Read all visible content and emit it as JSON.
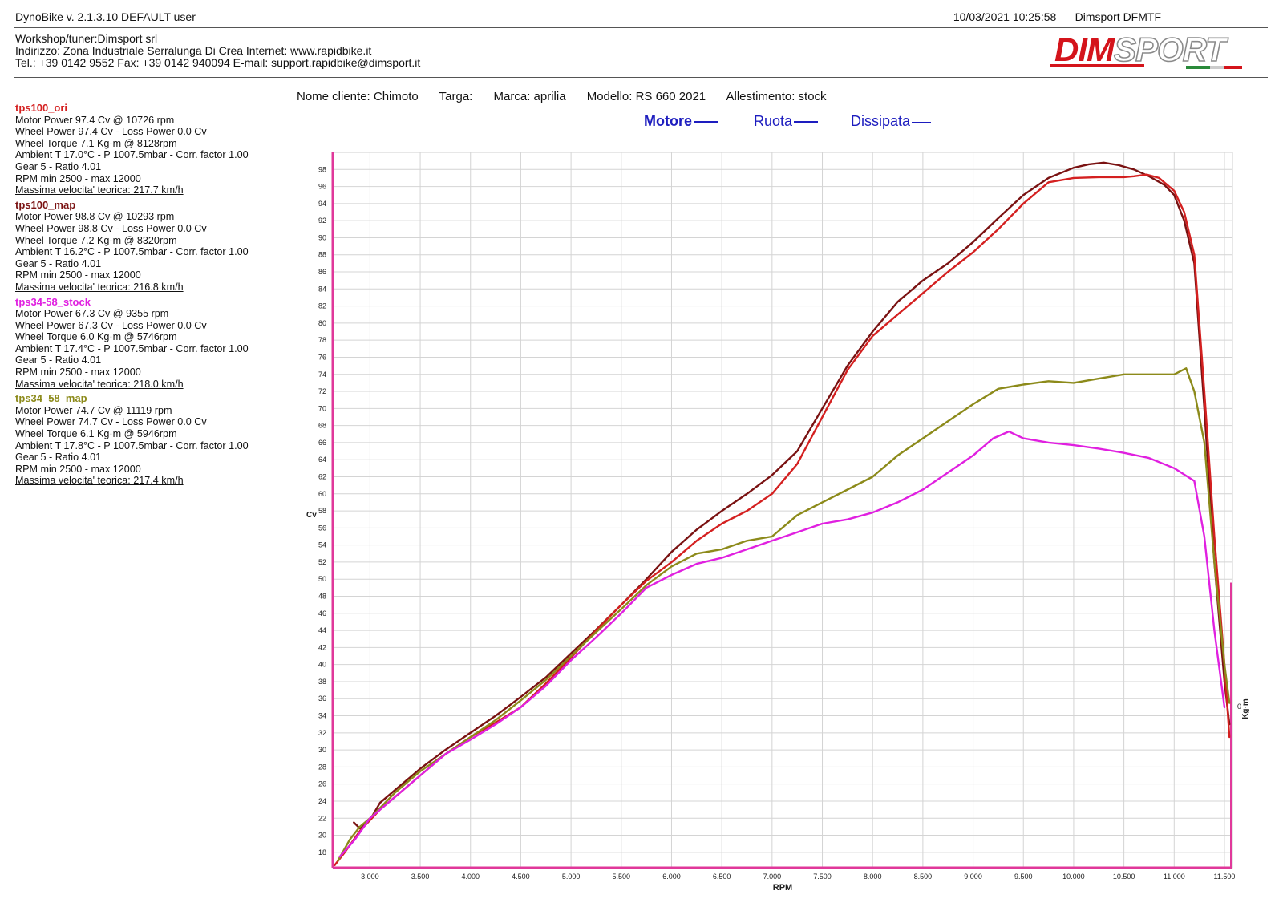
{
  "header": {
    "app": "DynoBike v. 2.1.3.10   DEFAULT user",
    "datetime": "10/03/2021 10:25:58",
    "device": "Dimsport DFMTF"
  },
  "workshop": {
    "line1": "Workshop/tuner:Dimsport srl",
    "line2": "Indirizzo: Zona Industriale Serralunga Di Crea Internet: www.rapidbike.it",
    "line3": "Tel.: +39 0142 9552 Fax: +39 0142 940094 E-mail: support.rapidbike@dimsport.it"
  },
  "logo": {
    "text_a": "DIM",
    "text_b": "SPORT"
  },
  "customer": {
    "nome": "Nome cliente: Chimoto",
    "targa": "Targa:",
    "marca": "Marca: aprilia",
    "modello": "Modello: RS 660 2021",
    "allestimento": "Allestimento: stock"
  },
  "legend": {
    "motore": "Motore",
    "ruota": "Ruota",
    "dissipata": "Dissipata",
    "color": "#1d1dbf"
  },
  "runs": [
    {
      "name": "tps100_ori",
      "color": "#d42020",
      "lines": [
        "Motor Power 97.4 Cv  @ 10726 rpm",
        "Wheel Power 97.4 Cv  - Loss Power 0.0 Cv",
        "Wheel Torque 7.1 Kg·m  @ 8128rpm",
        "Ambient T 17.0°C - P 1007.5mbar - Corr. factor 1.00",
        "Gear 5 - Ratio 4.01",
        "RPM min 2500 - max 12000"
      ],
      "speed": "Massima velocita' teorica: 217.7 km/h"
    },
    {
      "name": "tps100_map",
      "color": "#7a1212",
      "lines": [
        "Motor Power 98.8 Cv  @ 10293 rpm",
        "Wheel Power 98.8 Cv  - Loss Power 0.0 Cv",
        "Wheel Torque 7.2 Kg·m  @ 8320rpm",
        "Ambient T 16.2°C - P 1007.5mbar - Corr. factor 1.00",
        "Gear 5 - Ratio 4.01",
        "RPM min 2500 - max 12000"
      ],
      "speed": "Massima velocita' teorica: 216.8 km/h"
    },
    {
      "name": "tps34-58_stock",
      "color": "#e020e0",
      "lines": [
        "Motor Power 67.3 Cv  @ 9355 rpm",
        "Wheel Power 67.3 Cv  - Loss Power 0.0 Cv",
        "Wheel Torque 6.0 Kg·m  @ 5746rpm",
        "Ambient T 17.4°C - P 1007.5mbar - Corr. factor 1.00",
        "Gear 5 - Ratio 4.01",
        "RPM min 2500 - max 12000"
      ],
      "speed": "Massima velocita' teorica: 218.0 km/h"
    },
    {
      "name": "tps34_58_map",
      "color": "#8c8a1a",
      "lines": [
        "Motor Power 74.7 Cv  @ 11119 rpm",
        "Wheel Power 74.7 Cv  - Loss Power 0.0 Cv",
        "Wheel Torque 6.1 Kg·m  @ 5946rpm",
        "Ambient T 17.8°C - P 1007.5mbar - Corr. factor 1.00",
        "Gear 5 - Ratio 4.01",
        "RPM min 2500 - max 12000"
      ],
      "speed": "Massima velocita' teorica: 217.4 km/h"
    }
  ],
  "chart_data": {
    "type": "line",
    "xlabel": "RPM",
    "ylabel": "Cv",
    "y2label": "Kg·m",
    "y2_tick": "0",
    "xlim": [
      2630,
      11580
    ],
    "ylim": [
      16.2,
      100
    ],
    "x_ticks": [
      3000,
      3500,
      4000,
      4500,
      5000,
      5500,
      6000,
      6500,
      7000,
      7500,
      8000,
      8500,
      9000,
      9500,
      10000,
      10500,
      11000,
      11500
    ],
    "x_tick_labels": [
      "3.000",
      "3.500",
      "4.000",
      "4.500",
      "5.000",
      "5.500",
      "6.000",
      "6.500",
      "7.000",
      "7.500",
      "8.000",
      "8.500",
      "9.000",
      "9.500",
      "10.000",
      "10.500",
      "11.000",
      "11.500"
    ],
    "y_ticks": [
      18,
      20,
      22,
      24,
      26,
      28,
      30,
      32,
      34,
      36,
      38,
      40,
      42,
      44,
      46,
      48,
      50,
      52,
      54,
      56,
      58,
      60,
      62,
      64,
      66,
      68,
      70,
      72,
      74,
      76,
      78,
      80,
      82,
      84,
      86,
      88,
      90,
      92,
      94,
      96,
      98
    ],
    "axis_color": "#e0389a",
    "grid": true,
    "series": [
      {
        "name": "tps100_map",
        "color": "#7a1212",
        "x": [
          2840,
          2900,
          3000,
          3100,
          3250,
          3500,
          3750,
          4000,
          4250,
          4500,
          4750,
          5000,
          5250,
          5500,
          5750,
          6000,
          6250,
          6500,
          6750,
          7000,
          7250,
          7500,
          7750,
          8000,
          8250,
          8500,
          8750,
          9000,
          9250,
          9500,
          9750,
          10000,
          10150,
          10300,
          10450,
          10600,
          10750,
          10900,
          11000,
          11100,
          11200,
          11300,
          11400,
          11500,
          11550
        ],
        "y": [
          21.5,
          20.8,
          21.8,
          23.8,
          25.3,
          27.8,
          30.0,
          32.0,
          34.0,
          36.2,
          38.5,
          41.3,
          44.1,
          47.0,
          50.0,
          53.2,
          55.8,
          58.0,
          60.0,
          62.2,
          65.0,
          70.0,
          75.0,
          79.0,
          82.5,
          85.0,
          87.0,
          89.5,
          92.3,
          95.0,
          97.0,
          98.2,
          98.6,
          98.8,
          98.5,
          98.0,
          97.2,
          96.2,
          95.0,
          92.0,
          87.0,
          70.0,
          52.0,
          38.0,
          33.0
        ]
      },
      {
        "name": "tps100_ori",
        "color": "#d42020",
        "x": [
          2650,
          2750,
          2900,
          3100,
          3300,
          3500,
          3750,
          4000,
          4250,
          4500,
          4750,
          5000,
          5250,
          5500,
          5750,
          6000,
          6250,
          6500,
          6750,
          7000,
          7250,
          7500,
          7750,
          8000,
          8250,
          8500,
          8750,
          9000,
          9250,
          9500,
          9750,
          10000,
          10250,
          10500,
          10600,
          10726,
          10850,
          11000,
          11100,
          11200,
          11300,
          11400,
          11500,
          11550
        ],
        "y": [
          16.5,
          18.0,
          20.5,
          23.0,
          25.0,
          27.0,
          29.5,
          31.5,
          33.2,
          35.0,
          37.8,
          40.8,
          44.0,
          47.0,
          49.8,
          52.0,
          54.5,
          56.5,
          58.0,
          60.0,
          63.5,
          69.0,
          74.5,
          78.5,
          81.0,
          83.5,
          86.0,
          88.3,
          91.0,
          94.0,
          96.5,
          97.0,
          97.1,
          97.1,
          97.2,
          97.4,
          97.0,
          95.5,
          93.0,
          88.0,
          72.0,
          55.0,
          40.0,
          31.5
        ]
      },
      {
        "name": "tps34_58_map",
        "color": "#8c8a1a",
        "x": [
          2680,
          2800,
          2900,
          3000,
          3250,
          3500,
          3750,
          4000,
          4250,
          4500,
          4750,
          5000,
          5250,
          5500,
          5750,
          6000,
          6250,
          6500,
          6750,
          7000,
          7250,
          7500,
          7750,
          8000,
          8250,
          8500,
          8750,
          9000,
          9250,
          9500,
          9750,
          10000,
          10250,
          10500,
          10750,
          11000,
          11119,
          11200,
          11300,
          11400,
          11500,
          11550
        ],
        "y": [
          17.0,
          19.5,
          21.0,
          22.0,
          25.0,
          27.5,
          29.5,
          31.5,
          33.5,
          35.8,
          38.2,
          41.0,
          43.8,
          46.5,
          49.3,
          51.5,
          53.0,
          53.5,
          54.5,
          55.0,
          57.5,
          59.0,
          60.5,
          62.0,
          64.5,
          66.5,
          68.5,
          70.5,
          72.3,
          72.8,
          73.2,
          73.0,
          73.5,
          74.0,
          74.0,
          74.0,
          74.7,
          72.0,
          66.0,
          52.0,
          40.0,
          35.5
        ]
      },
      {
        "name": "tps34-58_stock",
        "color": "#e020e0",
        "x": [
          2700,
          2850,
          3000,
          3250,
          3500,
          3750,
          4000,
          4250,
          4500,
          4750,
          5000,
          5250,
          5500,
          5750,
          6000,
          6250,
          6500,
          6750,
          7000,
          7250,
          7500,
          7750,
          8000,
          8250,
          8500,
          8750,
          9000,
          9200,
          9355,
          9500,
          9750,
          10000,
          10250,
          10500,
          10750,
          11000,
          11200,
          11300,
          11400,
          11500
        ],
        "y": [
          17.5,
          19.5,
          22.0,
          24.5,
          27.0,
          29.5,
          31.2,
          33.0,
          35.0,
          37.5,
          40.5,
          43.2,
          46.0,
          49.0,
          50.5,
          51.8,
          52.5,
          53.5,
          54.5,
          55.5,
          56.5,
          57.0,
          57.8,
          59.0,
          60.5,
          62.5,
          64.5,
          66.5,
          67.3,
          66.5,
          66.0,
          65.7,
          65.3,
          64.8,
          64.2,
          63.0,
          61.5,
          55.0,
          44.0,
          35.0
        ]
      }
    ]
  }
}
